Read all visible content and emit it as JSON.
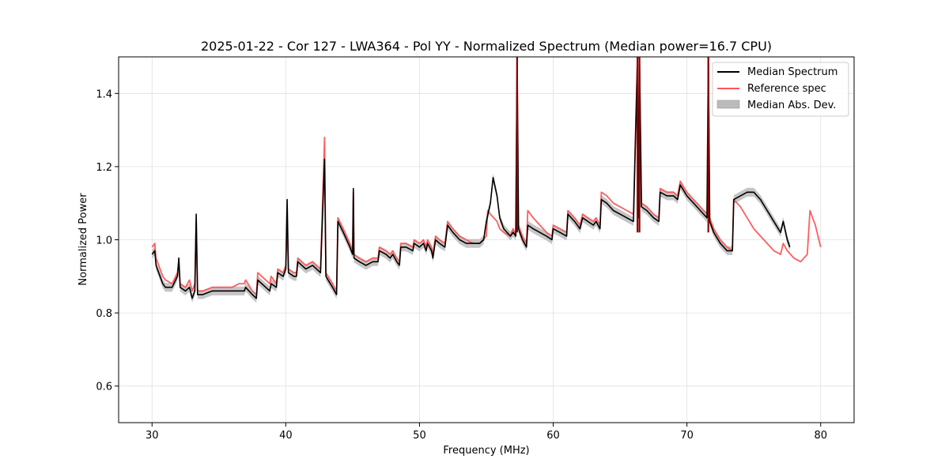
{
  "colors": {
    "median": "#000000",
    "reference": "#ff5555",
    "mad_band": "#bbbbbb",
    "overlap": "#8b0000",
    "grid": "#e0e0e0"
  },
  "chart_data": {
    "type": "line",
    "title": "2025-01-22 - Cor 127 - LWA364 - Pol YY - Normalized Spectrum (Median power=16.7 CPU)",
    "xlabel": "Frequency (MHz)",
    "ylabel": "Normalized Power",
    "xlim": [
      27.5,
      82.5
    ],
    "ylim": [
      0.5,
      1.5
    ],
    "grid": true,
    "legend_position": "top-right",
    "x_ticks": [
      30,
      40,
      50,
      60,
      70,
      80
    ],
    "x_tick_labels": [
      "30",
      "40",
      "50",
      "60",
      "70",
      "80"
    ],
    "y_ticks": [
      0.6,
      0.8,
      1.0,
      1.2,
      1.4
    ],
    "y_tick_labels": [
      "0.6",
      "0.8",
      "1.0",
      "1.2",
      "1.4"
    ],
    "legend": [
      {
        "label": "Median Spectrum",
        "kind": "line",
        "color": "#000000"
      },
      {
        "label": "Reference spec",
        "kind": "line",
        "color": "#ff5555"
      },
      {
        "label": "Median Abs. Dev.",
        "kind": "patch",
        "color": "#bbbbbb"
      }
    ],
    "series": [
      {
        "name": "Reference spec",
        "color": "#ff5555",
        "points": [
          [
            30.0,
            0.98
          ],
          [
            30.2,
            0.99
          ],
          [
            30.3,
            0.95
          ],
          [
            30.5,
            0.93
          ],
          [
            30.8,
            0.9
          ],
          [
            31.0,
            0.89
          ],
          [
            31.5,
            0.88
          ],
          [
            31.9,
            0.91
          ],
          [
            32.0,
            0.94
          ],
          [
            32.1,
            0.88
          ],
          [
            32.5,
            0.87
          ],
          [
            32.8,
            0.89
          ],
          [
            33.0,
            0.86
          ],
          [
            33.2,
            0.88
          ],
          [
            33.3,
            1.05
          ],
          [
            33.4,
            0.86
          ],
          [
            33.8,
            0.86
          ],
          [
            34.5,
            0.87
          ],
          [
            35.0,
            0.87
          ],
          [
            35.5,
            0.87
          ],
          [
            36.0,
            0.87
          ],
          [
            36.5,
            0.88
          ],
          [
            36.9,
            0.88
          ],
          [
            37.0,
            0.89
          ],
          [
            37.5,
            0.86
          ],
          [
            37.8,
            0.85
          ],
          [
            37.9,
            0.91
          ],
          [
            38.5,
            0.89
          ],
          [
            38.8,
            0.88
          ],
          [
            38.9,
            0.9
          ],
          [
            39.3,
            0.88
          ],
          [
            39.4,
            0.92
          ],
          [
            39.8,
            0.91
          ],
          [
            40.0,
            0.93
          ],
          [
            40.1,
            1.06
          ],
          [
            40.2,
            0.92
          ],
          [
            40.6,
            0.91
          ],
          [
            40.8,
            0.91
          ],
          [
            40.9,
            0.95
          ],
          [
            41.5,
            0.93
          ],
          [
            42.0,
            0.94
          ],
          [
            42.3,
            0.93
          ],
          [
            42.6,
            0.92
          ],
          [
            42.9,
            1.28
          ],
          [
            43.0,
            0.91
          ],
          [
            43.5,
            0.88
          ],
          [
            43.8,
            0.86
          ],
          [
            43.9,
            1.06
          ],
          [
            44.3,
            1.03
          ],
          [
            44.8,
            0.99
          ],
          [
            45.0,
            0.97
          ],
          [
            45.05,
            1.13
          ],
          [
            45.1,
            0.96
          ],
          [
            45.5,
            0.95
          ],
          [
            46.0,
            0.94
          ],
          [
            46.5,
            0.95
          ],
          [
            46.9,
            0.95
          ],
          [
            47.0,
            0.98
          ],
          [
            47.5,
            0.97
          ],
          [
            47.8,
            0.96
          ],
          [
            48.0,
            0.97
          ],
          [
            48.3,
            0.95
          ],
          [
            48.5,
            0.94
          ],
          [
            48.6,
            0.99
          ],
          [
            49.0,
            0.99
          ],
          [
            49.5,
            0.98
          ],
          [
            49.6,
            1.0
          ],
          [
            50.0,
            0.99
          ],
          [
            50.3,
            1.0
          ],
          [
            50.5,
            0.98
          ],
          [
            50.6,
            1.0
          ],
          [
            50.9,
            0.98
          ],
          [
            51.0,
            0.96
          ],
          [
            51.2,
            1.01
          ],
          [
            51.5,
            1.0
          ],
          [
            51.9,
            0.99
          ],
          [
            52.1,
            1.05
          ],
          [
            52.5,
            1.03
          ],
          [
            53.0,
            1.01
          ],
          [
            53.5,
            1.0
          ],
          [
            54.0,
            0.99
          ],
          [
            54.5,
            0.99
          ],
          [
            55.0,
            1.01
          ],
          [
            55.1,
            1.08
          ],
          [
            55.3,
            1.07
          ],
          [
            55.8,
            1.05
          ],
          [
            56.0,
            1.03
          ],
          [
            56.3,
            1.02
          ],
          [
            56.8,
            1.01
          ],
          [
            57.0,
            1.03
          ],
          [
            57.2,
            1.01
          ],
          [
            57.3,
            1.5
          ],
          [
            57.4,
            1.04
          ],
          [
            57.7,
            1.01
          ],
          [
            58.0,
            0.99
          ],
          [
            58.1,
            1.08
          ],
          [
            58.5,
            1.06
          ],
          [
            59.0,
            1.04
          ],
          [
            59.5,
            1.02
          ],
          [
            59.9,
            1.01
          ],
          [
            60.0,
            1.04
          ],
          [
            60.5,
            1.03
          ],
          [
            61.0,
            1.02
          ],
          [
            61.1,
            1.08
          ],
          [
            61.6,
            1.06
          ],
          [
            62.0,
            1.04
          ],
          [
            62.2,
            1.07
          ],
          [
            62.6,
            1.06
          ],
          [
            63.0,
            1.05
          ],
          [
            63.2,
            1.06
          ],
          [
            63.5,
            1.04
          ],
          [
            63.6,
            1.13
          ],
          [
            64.0,
            1.12
          ],
          [
            64.5,
            1.1
          ],
          [
            65.0,
            1.09
          ],
          [
            65.5,
            1.08
          ],
          [
            66.0,
            1.07
          ],
          [
            66.3,
            1.5
          ],
          [
            66.35,
            1.07
          ],
          [
            66.45,
            1.5
          ],
          [
            66.6,
            1.1
          ],
          [
            67.0,
            1.09
          ],
          [
            67.5,
            1.07
          ],
          [
            67.9,
            1.06
          ],
          [
            68.0,
            1.14
          ],
          [
            68.5,
            1.13
          ],
          [
            69.0,
            1.13
          ],
          [
            69.3,
            1.12
          ],
          [
            69.5,
            1.16
          ],
          [
            70.0,
            1.13
          ],
          [
            70.5,
            1.11
          ],
          [
            71.0,
            1.09
          ],
          [
            71.5,
            1.07
          ],
          [
            71.6,
            1.5
          ],
          [
            71.7,
            1.06
          ],
          [
            72.0,
            1.03
          ],
          [
            72.5,
            1.0
          ],
          [
            73.0,
            0.98
          ],
          [
            73.4,
            0.97
          ],
          [
            73.5,
            1.11
          ],
          [
            74.0,
            1.09
          ],
          [
            74.5,
            1.06
          ],
          [
            75.0,
            1.03
          ],
          [
            75.5,
            1.01
          ],
          [
            76.0,
            0.99
          ],
          [
            76.5,
            0.97
          ],
          [
            77.0,
            0.96
          ],
          [
            77.2,
            0.99
          ],
          [
            77.5,
            0.97
          ],
          [
            78.0,
            0.95
          ],
          [
            78.5,
            0.94
          ],
          [
            79.0,
            0.96
          ],
          [
            79.2,
            1.08
          ],
          [
            79.6,
            1.04
          ],
          [
            80.0,
            0.98
          ]
        ]
      },
      {
        "name": "Median Spectrum",
        "color": "#000000",
        "points": [
          [
            30.0,
            0.96
          ],
          [
            30.2,
            0.97
          ],
          [
            30.3,
            0.93
          ],
          [
            30.5,
            0.91
          ],
          [
            30.8,
            0.88
          ],
          [
            31.0,
            0.87
          ],
          [
            31.5,
            0.87
          ],
          [
            31.9,
            0.9
          ],
          [
            32.0,
            0.95
          ],
          [
            32.1,
            0.87
          ],
          [
            32.5,
            0.86
          ],
          [
            32.8,
            0.87
          ],
          [
            33.0,
            0.84
          ],
          [
            33.2,
            0.86
          ],
          [
            33.3,
            1.07
          ],
          [
            33.4,
            0.85
          ],
          [
            33.8,
            0.85
          ],
          [
            34.5,
            0.86
          ],
          [
            35.0,
            0.86
          ],
          [
            35.5,
            0.86
          ],
          [
            36.0,
            0.86
          ],
          [
            36.5,
            0.86
          ],
          [
            36.9,
            0.86
          ],
          [
            37.0,
            0.87
          ],
          [
            37.5,
            0.85
          ],
          [
            37.8,
            0.84
          ],
          [
            37.9,
            0.89
          ],
          [
            38.5,
            0.87
          ],
          [
            38.8,
            0.86
          ],
          [
            38.9,
            0.88
          ],
          [
            39.3,
            0.87
          ],
          [
            39.4,
            0.91
          ],
          [
            39.8,
            0.9
          ],
          [
            40.0,
            0.92
          ],
          [
            40.1,
            1.11
          ],
          [
            40.2,
            0.91
          ],
          [
            40.6,
            0.9
          ],
          [
            40.8,
            0.9
          ],
          [
            40.9,
            0.94
          ],
          [
            41.5,
            0.92
          ],
          [
            42.0,
            0.93
          ],
          [
            42.3,
            0.92
          ],
          [
            42.6,
            0.91
          ],
          [
            42.9,
            1.22
          ],
          [
            43.0,
            0.9
          ],
          [
            43.5,
            0.87
          ],
          [
            43.8,
            0.85
          ],
          [
            43.9,
            1.05
          ],
          [
            44.3,
            1.02
          ],
          [
            44.8,
            0.98
          ],
          [
            45.0,
            0.96
          ],
          [
            45.05,
            1.14
          ],
          [
            45.1,
            0.95
          ],
          [
            45.5,
            0.94
          ],
          [
            46.0,
            0.93
          ],
          [
            46.5,
            0.94
          ],
          [
            46.9,
            0.94
          ],
          [
            47.0,
            0.97
          ],
          [
            47.5,
            0.96
          ],
          [
            47.8,
            0.95
          ],
          [
            48.0,
            0.96
          ],
          [
            48.3,
            0.94
          ],
          [
            48.5,
            0.93
          ],
          [
            48.6,
            0.98
          ],
          [
            49.0,
            0.98
          ],
          [
            49.5,
            0.97
          ],
          [
            49.6,
            0.99
          ],
          [
            50.0,
            0.98
          ],
          [
            50.3,
            0.99
          ],
          [
            50.5,
            0.97
          ],
          [
            50.6,
            0.99
          ],
          [
            50.9,
            0.97
          ],
          [
            51.0,
            0.95
          ],
          [
            51.2,
            1.0
          ],
          [
            51.5,
            0.99
          ],
          [
            51.9,
            0.98
          ],
          [
            52.1,
            1.04
          ],
          [
            52.5,
            1.02
          ],
          [
            53.0,
            1.0
          ],
          [
            53.5,
            0.99
          ],
          [
            54.0,
            0.99
          ],
          [
            54.5,
            0.99
          ],
          [
            54.8,
            1.0
          ],
          [
            55.0,
            1.05
          ],
          [
            55.3,
            1.1
          ],
          [
            55.5,
            1.17
          ],
          [
            55.8,
            1.12
          ],
          [
            56.0,
            1.06
          ],
          [
            56.3,
            1.03
          ],
          [
            56.8,
            1.01
          ],
          [
            57.0,
            1.02
          ],
          [
            57.2,
            1.01
          ],
          [
            57.3,
            1.5
          ],
          [
            57.4,
            1.03
          ],
          [
            57.7,
            1.0
          ],
          [
            58.0,
            0.98
          ],
          [
            58.1,
            1.04
          ],
          [
            58.5,
            1.03
          ],
          [
            59.0,
            1.02
          ],
          [
            59.5,
            1.01
          ],
          [
            59.9,
            1.0
          ],
          [
            60.0,
            1.03
          ],
          [
            60.5,
            1.02
          ],
          [
            61.0,
            1.01
          ],
          [
            61.1,
            1.07
          ],
          [
            61.6,
            1.05
          ],
          [
            62.0,
            1.03
          ],
          [
            62.2,
            1.06
          ],
          [
            62.6,
            1.05
          ],
          [
            63.0,
            1.04
          ],
          [
            63.2,
            1.05
          ],
          [
            63.5,
            1.03
          ],
          [
            63.6,
            1.11
          ],
          [
            64.0,
            1.1
          ],
          [
            64.5,
            1.08
          ],
          [
            65.0,
            1.07
          ],
          [
            65.5,
            1.06
          ],
          [
            66.0,
            1.05
          ],
          [
            66.3,
            1.5
          ],
          [
            66.35,
            1.06
          ],
          [
            66.45,
            1.5
          ],
          [
            66.6,
            1.09
          ],
          [
            67.0,
            1.08
          ],
          [
            67.5,
            1.06
          ],
          [
            67.9,
            1.05
          ],
          [
            68.0,
            1.13
          ],
          [
            68.5,
            1.12
          ],
          [
            69.0,
            1.12
          ],
          [
            69.3,
            1.11
          ],
          [
            69.5,
            1.15
          ],
          [
            70.0,
            1.12
          ],
          [
            70.5,
            1.1
          ],
          [
            71.0,
            1.08
          ],
          [
            71.5,
            1.06
          ],
          [
            71.6,
            1.5
          ],
          [
            71.7,
            1.05
          ],
          [
            72.0,
            1.02
          ],
          [
            72.5,
            0.99
          ],
          [
            73.0,
            0.97
          ],
          [
            73.4,
            0.97
          ],
          [
            73.5,
            1.11
          ],
          [
            74.0,
            1.12
          ],
          [
            74.5,
            1.13
          ],
          [
            75.0,
            1.13
          ],
          [
            75.5,
            1.11
          ],
          [
            76.0,
            1.08
          ],
          [
            76.5,
            1.05
          ],
          [
            77.0,
            1.02
          ],
          [
            77.2,
            1.05
          ],
          [
            77.5,
            1.0
          ],
          [
            77.7,
            0.98
          ]
        ]
      }
    ]
  }
}
